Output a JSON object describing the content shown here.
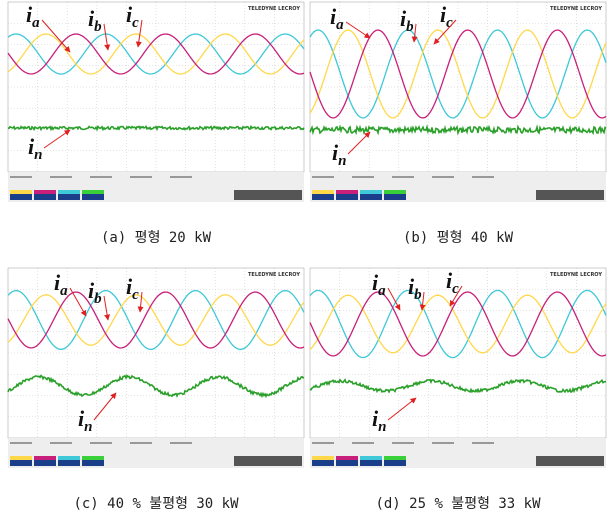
{
  "logo": "TELEDYNE LECROY",
  "panels": [
    {
      "caption": "(a) 평형 20 kW",
      "labels": [
        {
          "main": "i",
          "sub": "a"
        },
        {
          "main": "i",
          "sub": "b"
        },
        {
          "main": "i",
          "sub": "c"
        },
        {
          "main": "i",
          "sub": "n"
        }
      ]
    },
    {
      "caption": "(b) 평형 40 kW",
      "labels": [
        {
          "main": "i",
          "sub": "a"
        },
        {
          "main": "i",
          "sub": "b"
        },
        {
          "main": "i",
          "sub": "c"
        },
        {
          "main": "i",
          "sub": "n"
        }
      ]
    },
    {
      "caption": "(c) 40 % 불평형 30 kW",
      "labels": [
        {
          "main": "i",
          "sub": "a"
        },
        {
          "main": "i",
          "sub": "b"
        },
        {
          "main": "i",
          "sub": "c"
        },
        {
          "main": "i",
          "sub": "n"
        }
      ]
    },
    {
      "caption": "(d) 25 % 불평형 33 kW",
      "labels": [
        {
          "main": "i",
          "sub": "a"
        },
        {
          "main": "i",
          "sub": "b"
        },
        {
          "main": "i",
          "sub": "c"
        },
        {
          "main": "i",
          "sub": "n"
        }
      ]
    }
  ]
}
